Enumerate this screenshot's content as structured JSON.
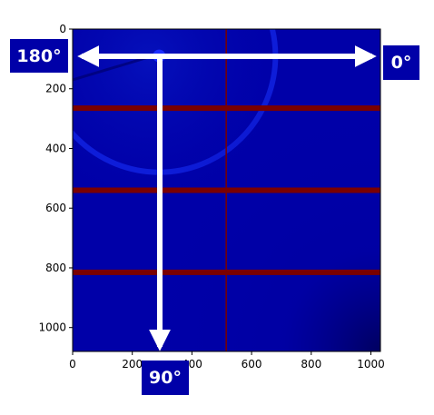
{
  "chart_data": {
    "type": "heatmap",
    "title": "",
    "xlabel": "",
    "ylabel": "",
    "xlim": [
      0,
      1032
    ],
    "ylim": [
      1080,
      0
    ],
    "x_ticks": [
      0,
      200,
      400,
      600,
      800,
      1000
    ],
    "y_ticks": [
      0,
      200,
      400,
      600,
      800,
      1000
    ],
    "horizontal_gaps_y": [
      265,
      540,
      815
    ],
    "vertical_gap_x": 515,
    "beam_center": {
      "x": 290,
      "y": 90
    },
    "ring_radius": 390,
    "colors": {
      "background": "#0000a8",
      "gap": "#7a0000",
      "ring": "#1a34ff",
      "arrow": "#ffffff"
    },
    "annotations": {
      "label_0": "0°",
      "label_90": "90°",
      "label_180": "180°"
    }
  }
}
